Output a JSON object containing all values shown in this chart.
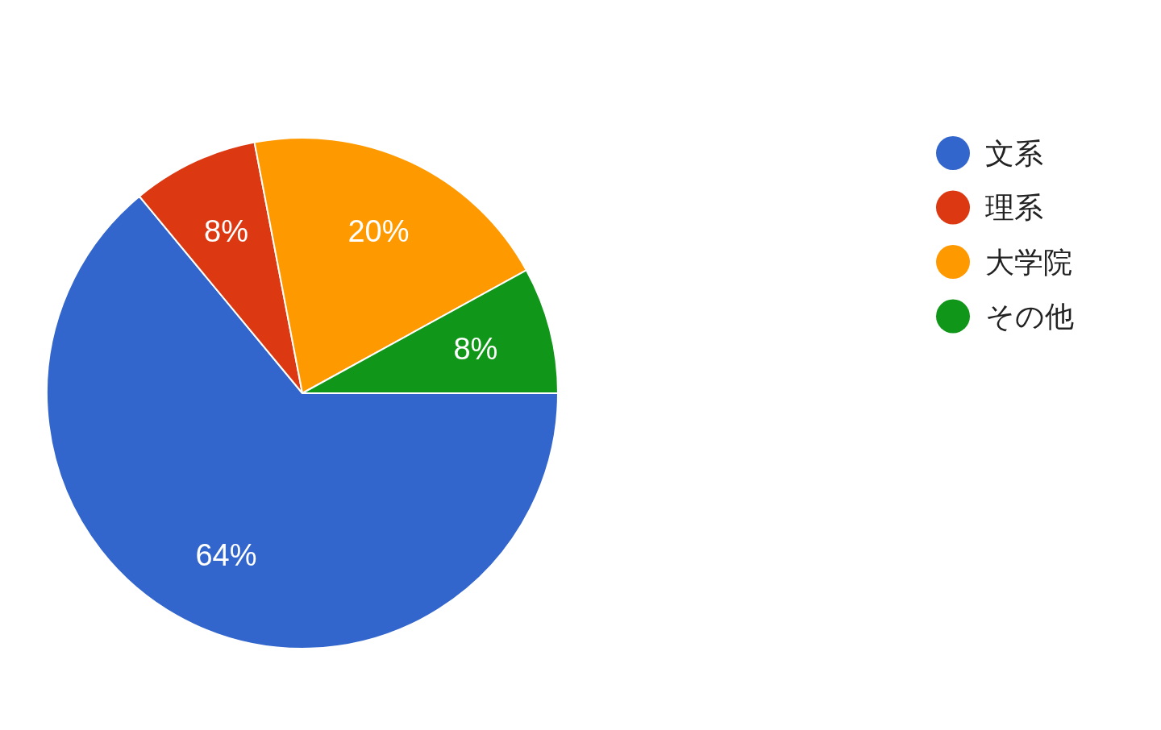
{
  "chart_data": {
    "type": "pie",
    "categories": [
      "文系",
      "理系",
      "大学院",
      "その他"
    ],
    "values": [
      64,
      8,
      20,
      8
    ],
    "value_labels": [
      "64%",
      "8%",
      "20%",
      "8%"
    ],
    "colors": [
      "#3366cc",
      "#dc3912",
      "#ff9900",
      "#109618"
    ],
    "legend": "right"
  }
}
